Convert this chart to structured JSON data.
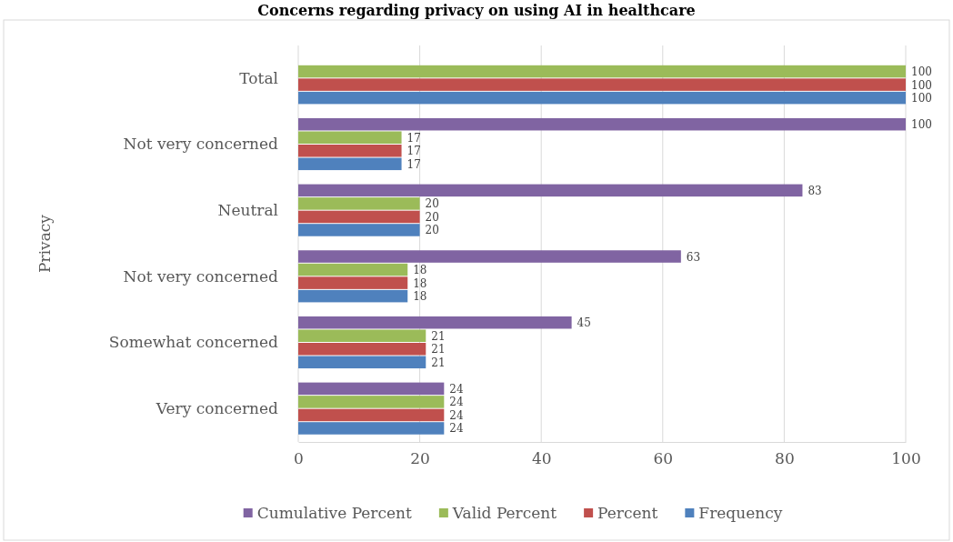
{
  "chart_data": {
    "type": "bar",
    "orientation": "horizontal",
    "title": "Concerns regarding privacy on using AI in healthcare",
    "ylabel": "Privacy",
    "categories": [
      "Total",
      "Not very concerned",
      "Neutral",
      "Not very concerned",
      "Somewhat concerned",
      "Very concerned"
    ],
    "series": [
      {
        "name": "Frequency",
        "color": "#4f81bd",
        "values": [
          100,
          17,
          20,
          18,
          21,
          24
        ]
      },
      {
        "name": "Percent",
        "color": "#c0504d",
        "values": [
          100,
          17,
          20,
          18,
          21,
          24
        ]
      },
      {
        "name": "Valid Percent",
        "color": "#9bbb59",
        "values": [
          100,
          17,
          20,
          18,
          21,
          24
        ]
      },
      {
        "name": "Cumulative Percent",
        "color": "#8064a2",
        "values": [
          null,
          100,
          83,
          63,
          45,
          24
        ]
      }
    ],
    "xlim": [
      0,
      100
    ],
    "xticks": [
      0,
      20,
      40,
      60,
      80,
      100
    ],
    "grid": "x",
    "legend": "bottom",
    "data_labels": true
  }
}
